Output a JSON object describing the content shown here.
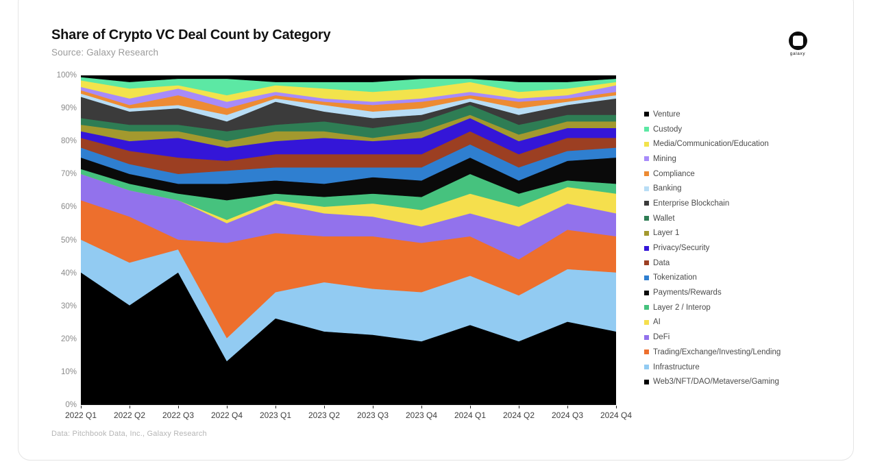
{
  "header": {
    "title": "Share of Crypto VC Deal Count by Category",
    "subtitle": "Source: Galaxy Research"
  },
  "logo": {
    "word": "galaxy"
  },
  "footer": {
    "text": "Data: Pitchbook Data, Inc., Galaxy Research"
  },
  "chart_data": {
    "type": "area",
    "stacked": true,
    "unit": "percent",
    "title": "Share of Crypto VC Deal Count by Category",
    "xlabel": "",
    "ylabel": "",
    "ylim": [
      0,
      100
    ],
    "grid": false,
    "legend_position": "right",
    "x_categories": [
      "2022 Q1",
      "2022 Q2",
      "2022 Q3",
      "2022 Q4",
      "2023 Q1",
      "2023 Q2",
      "2023 Q3",
      "2023 Q4",
      "2024 Q1",
      "2024 Q2",
      "2024 Q3",
      "2024 Q4"
    ],
    "y_ticks": [
      "0%",
      "10%",
      "20%",
      "30%",
      "40%",
      "50%",
      "60%",
      "70%",
      "80%",
      "90%",
      "100%"
    ],
    "series": [
      {
        "name": "Venture",
        "color": "#000000",
        "values": [
          0.5,
          2,
          1,
          1,
          2,
          2,
          2,
          1,
          1,
          2,
          2,
          1
        ]
      },
      {
        "name": "Custody",
        "color": "#5ce8a4",
        "values": [
          1,
          2,
          2,
          5,
          1,
          2,
          3,
          3,
          1,
          3,
          2,
          1
        ]
      },
      {
        "name": "Media/Communication/Education",
        "color": "#f2e34c",
        "values": [
          2,
          3,
          1,
          2,
          2,
          3,
          3,
          3,
          3,
          2,
          2,
          1
        ]
      },
      {
        "name": "Mining",
        "color": "#a78bfa",
        "values": [
          1,
          2,
          2,
          2,
          1,
          1,
          1,
          1,
          1,
          1,
          1,
          2
        ]
      },
      {
        "name": "Compliance",
        "color": "#ed8b33",
        "values": [
          1,
          1,
          3,
          2,
          1,
          1,
          2,
          2,
          1,
          2,
          1,
          1
        ]
      },
      {
        "name": "Banking",
        "color": "#b8ddf5",
        "values": [
          1,
          1,
          1,
          2,
          1,
          2,
          2,
          2,
          1,
          2,
          1,
          1
        ]
      },
      {
        "name": "Enterprise Blockchain",
        "color": "#3b3b3b",
        "values": [
          6.5,
          4,
          5,
          3,
          7,
          3,
          3,
          2,
          1,
          3,
          3,
          5
        ]
      },
      {
        "name": "Wallet",
        "color": "#2e7d54",
        "values": [
          2,
          2,
          2,
          3,
          2,
          3,
          3,
          3,
          3,
          3,
          2,
          2
        ]
      },
      {
        "name": "Layer 1",
        "color": "#a3992e",
        "values": [
          2,
          3,
          2,
          2,
          3,
          2,
          1,
          2,
          1,
          2,
          2,
          2
        ]
      },
      {
        "name": "Privacy/Security",
        "color": "#3416d8",
        "values": [
          2,
          3,
          6,
          4,
          4,
          5,
          4,
          5,
          4,
          4,
          3,
          3
        ]
      },
      {
        "name": "Data",
        "color": "#9c3f22",
        "values": [
          3,
          4,
          5,
          3,
          4,
          4,
          4,
          4,
          4,
          4,
          4,
          3
        ]
      },
      {
        "name": "Tokenization",
        "color": "#2f7fd0",
        "values": [
          3,
          3,
          3,
          4,
          4,
          5,
          3,
          4,
          4,
          4,
          3,
          3
        ]
      },
      {
        "name": "Payments/Rewards",
        "color": "#0a0a0a",
        "values": [
          3.5,
          3,
          3,
          5,
          4,
          4,
          5,
          5,
          5,
          4,
          6,
          8
        ]
      },
      {
        "name": "Layer 2 / Interop",
        "color": "#46c27e",
        "values": [
          1.5,
          2,
          2,
          6,
          2,
          3,
          3,
          4,
          6,
          4,
          2,
          3
        ]
      },
      {
        "name": "AI",
        "color": "#f5df4d",
        "values": [
          0,
          0,
          0,
          1,
          1,
          2,
          4,
          5,
          6,
          6,
          5,
          6
        ]
      },
      {
        "name": "DeFi",
        "color": "#9272ec",
        "values": [
          8,
          8,
          12,
          6,
          9,
          7,
          6,
          5,
          7,
          10,
          8,
          7
        ]
      },
      {
        "name": "Trading/Exchange/Investing/Lending",
        "color": "#ed6f2d",
        "values": [
          12,
          14,
          3,
          29,
          18,
          14,
          16,
          15,
          12,
          11,
          12,
          11
        ]
      },
      {
        "name": "Infrastructure",
        "color": "#92cbf2",
        "values": [
          10,
          13,
          7,
          7,
          8,
          15,
          14,
          15,
          15,
          14,
          16,
          18
        ]
      },
      {
        "name": "Web3/NFT/DAO/Metaverse/Gaming",
        "color": "#000000",
        "values": [
          40,
          30,
          40,
          13,
          26,
          22,
          21,
          19,
          24,
          19,
          25,
          22
        ]
      }
    ]
  }
}
